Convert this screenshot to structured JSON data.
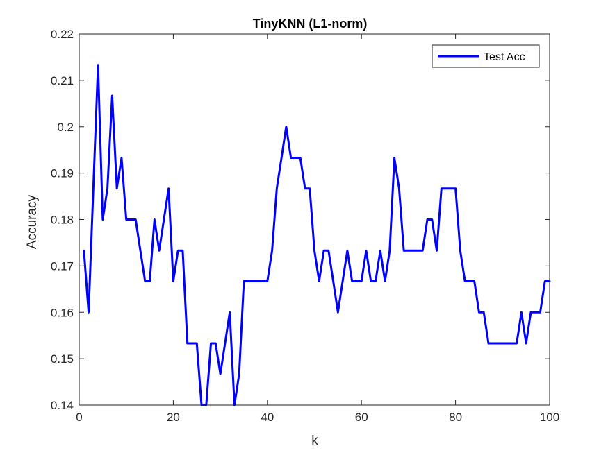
{
  "chart_data": {
    "type": "line",
    "title": "TinyKNN (L1-norm)",
    "xlabel": "k",
    "ylabel": "Accuracy",
    "xlim": [
      0,
      100
    ],
    "ylim": [
      0.14,
      0.22
    ],
    "xticks": [
      0,
      20,
      40,
      60,
      80,
      100
    ],
    "xtick_labels": [
      "0",
      "20",
      "40",
      "60",
      "80",
      "100"
    ],
    "yticks": [
      0.14,
      0.15,
      0.16,
      0.17,
      0.18,
      0.19,
      0.2,
      0.21,
      0.22
    ],
    "ytick_labels": [
      "0.14",
      "0.15",
      "0.16",
      "0.17",
      "0.18",
      "0.19",
      "0.2",
      "0.21",
      "0.22"
    ],
    "grid": false,
    "legend_position": "top-right",
    "series": [
      {
        "name": "Test Acc",
        "color": "#0000ff",
        "x": [
          1,
          2,
          3,
          4,
          5,
          6,
          7,
          8,
          9,
          10,
          11,
          12,
          13,
          14,
          15,
          16,
          17,
          18,
          19,
          20,
          21,
          22,
          23,
          24,
          25,
          26,
          27,
          28,
          29,
          30,
          31,
          32,
          33,
          34,
          35,
          36,
          37,
          38,
          39,
          40,
          41,
          42,
          43,
          44,
          45,
          46,
          47,
          48,
          49,
          50,
          51,
          52,
          53,
          54,
          55,
          56,
          57,
          58,
          59,
          60,
          61,
          62,
          63,
          64,
          65,
          66,
          67,
          68,
          69,
          70,
          71,
          72,
          73,
          74,
          75,
          76,
          77,
          78,
          79,
          80,
          81,
          82,
          83,
          84,
          85,
          86,
          87,
          88,
          89,
          90,
          91,
          92,
          93,
          94,
          95,
          96,
          97,
          98,
          99,
          100
        ],
        "y": [
          0.1733,
          0.16,
          0.1867,
          0.2133,
          0.18,
          0.1867,
          0.2067,
          0.1867,
          0.1933,
          0.18,
          0.18,
          0.18,
          0.1733,
          0.1667,
          0.1667,
          0.18,
          0.1733,
          0.18,
          0.1867,
          0.1667,
          0.1733,
          0.1733,
          0.1533,
          0.1533,
          0.1533,
          0.14,
          0.14,
          0.1533,
          0.1533,
          0.1467,
          0.1533,
          0.16,
          0.14,
          0.1467,
          0.1667,
          0.1667,
          0.1667,
          0.1667,
          0.1667,
          0.1667,
          0.1733,
          0.1867,
          0.1933,
          0.2,
          0.1933,
          0.1933,
          0.1933,
          0.1867,
          0.1867,
          0.1733,
          0.1667,
          0.1733,
          0.1733,
          0.1667,
          0.16,
          0.1667,
          0.1733,
          0.1667,
          0.1667,
          0.1667,
          0.1733,
          0.1667,
          0.1667,
          0.1733,
          0.1667,
          0.1733,
          0.1933,
          0.1867,
          0.1733,
          0.1733,
          0.1733,
          0.1733,
          0.1733,
          0.18,
          0.18,
          0.1733,
          0.1867,
          0.1867,
          0.1867,
          0.1867,
          0.1733,
          0.1667,
          0.1667,
          0.1667,
          0.16,
          0.16,
          0.1533,
          0.1533,
          0.1533,
          0.1533,
          0.1533,
          0.1533,
          0.1533,
          0.16,
          0.1533,
          0.16,
          0.16,
          0.16,
          0.1667,
          0.1667
        ]
      }
    ]
  }
}
